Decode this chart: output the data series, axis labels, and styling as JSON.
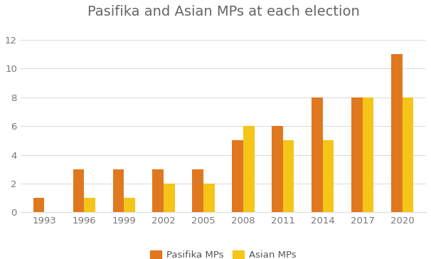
{
  "title": "Pasifika and Asian MPs at each election",
  "years": [
    1993,
    1996,
    1999,
    2002,
    2005,
    2008,
    2011,
    2014,
    2017,
    2020
  ],
  "pasifika": [
    1,
    3,
    3,
    3,
    3,
    5,
    6,
    8,
    8,
    11
  ],
  "asian": [
    0,
    1,
    1,
    2,
    2,
    6,
    5,
    5,
    8,
    8
  ],
  "pasifika_color": "#E07820",
  "asian_color": "#F5C518",
  "background_color": "#FFFFFF",
  "ylim": [
    0,
    13
  ],
  "yticks": [
    0,
    2,
    4,
    6,
    8,
    10,
    12
  ],
  "title_fontsize": 14,
  "legend_label_pasifika": "Pasifika MPs",
  "legend_label_asian": "Asian MPs",
  "bar_width": 0.28,
  "grid_color": "#DDDDDD",
  "tick_fontsize": 9.5,
  "legend_fontsize": 9.5,
  "title_color": "#666666"
}
